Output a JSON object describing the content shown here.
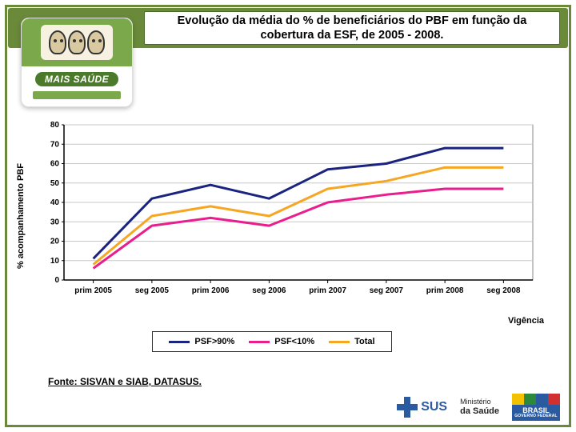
{
  "header": {
    "title": "Evolução da média do % de beneficiários do PBF em função da cobertura da ESF, de 2005 -  2008."
  },
  "logo": {
    "program_label": "MAIS SAÚDE"
  },
  "chart": {
    "type": "line",
    "ylabel": "% acompanhamento PBF",
    "xlabel": "Vigência",
    "ylim": [
      0,
      80
    ],
    "ytick_step": 10,
    "yticks": [
      0,
      10,
      20,
      30,
      40,
      50,
      60,
      70,
      80
    ],
    "categories": [
      "prim 2005",
      "seg 2005",
      "prim 2006",
      "seg 2006",
      "prim 2007",
      "seg 2007",
      "prim 2008",
      "seg 2008"
    ],
    "background_color": "#ffffff",
    "grid_color": "#c8c8c8",
    "axis_color": "#000000",
    "plot_border_color": "#888888",
    "line_width": 3,
    "label_fontsize": 11,
    "tick_fontsize": 10,
    "series": [
      {
        "name": "PSF>90%",
        "color": "#1a237e",
        "values": [
          11,
          42,
          49,
          42,
          57,
          60,
          68,
          68
        ]
      },
      {
        "name": "PSF<10%",
        "color": "#e91e8c",
        "values": [
          6,
          28,
          32,
          28,
          40,
          44,
          47,
          47
        ]
      },
      {
        "name": "Total",
        "color": "#f5a623",
        "values": [
          8,
          33,
          38,
          33,
          47,
          51,
          58,
          58
        ]
      }
    ]
  },
  "legend": {
    "items": [
      {
        "label": "PSF>90%",
        "color": "#1a237e"
      },
      {
        "label": "PSF<10%",
        "color": "#e91e8c"
      },
      {
        "label": "Total",
        "color": "#f5a623"
      }
    ]
  },
  "source": "Fonte: SISVAN e SIAB, DATASUS.",
  "footer": {
    "sus": "SUS",
    "ministerio_line1": "Ministério",
    "ministerio_line2": "da Saúde",
    "brasil": "BRASIL",
    "brasil_sub": "GOVERNO FEDERAL",
    "flag_colors": [
      "#f2c200",
      "#2a8a3a",
      "#2a5aa0",
      "#d03030"
    ]
  }
}
